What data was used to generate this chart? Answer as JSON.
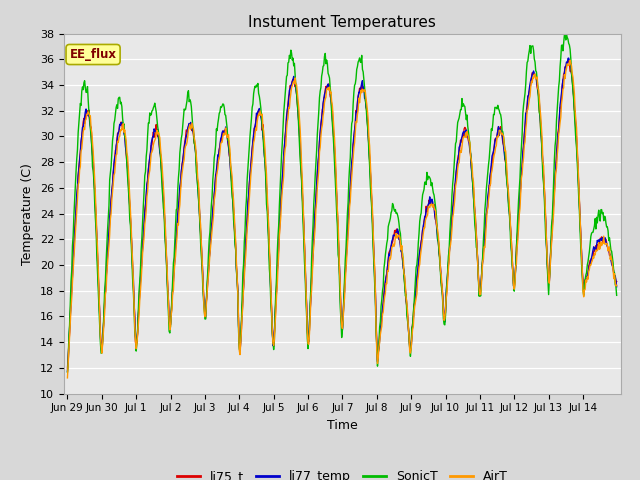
{
  "title": "Instument Temperatures",
  "xlabel": "Time",
  "ylabel": "Temperature (C)",
  "ylim": [
    10,
    38
  ],
  "yticks": [
    10,
    12,
    14,
    16,
    18,
    20,
    22,
    24,
    26,
    28,
    30,
    32,
    34,
    36,
    38
  ],
  "bg_color": "#e8e8e8",
  "fig_bg_color": "#d8d8d8",
  "legend_labels": [
    "li75_t",
    "li77_temp",
    "SonicT",
    "AirT"
  ],
  "legend_colors": [
    "#dd0000",
    "#0000cc",
    "#00bb00",
    "#ff9900"
  ],
  "annotation_text": "EE_flux",
  "annotation_bg": "#ffff99",
  "annotation_border": "#aaaa00",
  "line_width": 1.0,
  "xtick_labels": [
    "Jun 29",
    "Jun 30",
    "Jul 1",
    "Jul 2",
    "Jul 3",
    "Jul 4",
    "Jul 5",
    "Jul 6",
    "Jul 7",
    "Jul 8",
    "Jul 9",
    "Jul 10",
    "Jul 11",
    "Jul 12",
    "Jul 13",
    "Jul 14"
  ],
  "num_days": 16,
  "pts_per_day": 48,
  "base_mins": [
    11.5,
    13.0,
    13.0,
    15.5,
    15.5,
    12.0,
    13.5,
    13.0,
    15.0,
    12.0,
    14.0,
    17.0,
    17.5,
    18.0,
    18.0,
    18.0
  ],
  "base_maxs": [
    32.0,
    31.0,
    30.5,
    31.0,
    30.5,
    32.0,
    34.5,
    34.0,
    34.0,
    22.5,
    25.0,
    30.5,
    30.5,
    35.0,
    36.0,
    22.0
  ],
  "sonic_extra": 2.0,
  "air_lag": 0.15
}
